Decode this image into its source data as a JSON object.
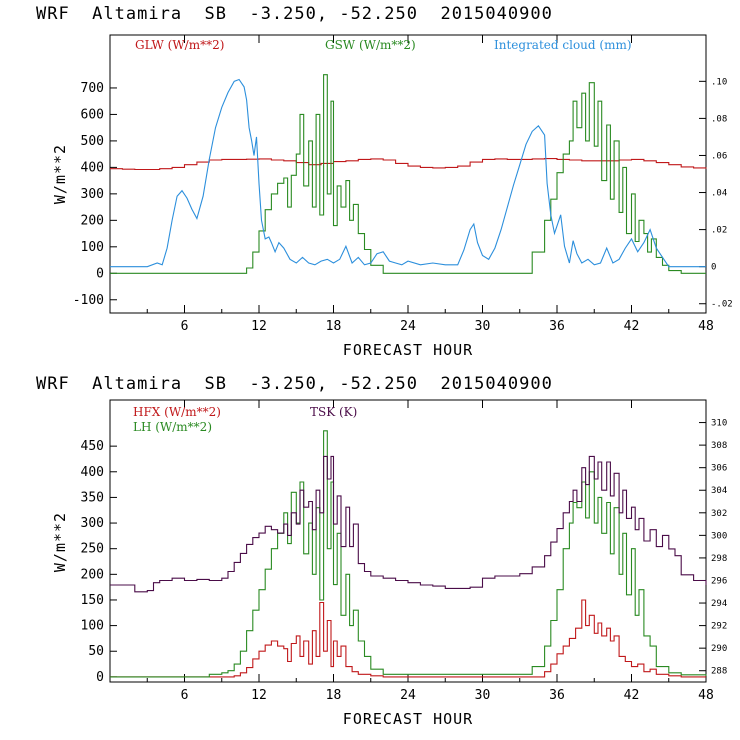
{
  "top": {
    "header": "WRF  Altamira  SB  -3.250, -52.250  2015040900",
    "ylabel": "W/m**2",
    "xlabel": "FORECAST HOUR",
    "legend": [
      {
        "label": "GLW (W/m**2)",
        "color": "#c0181a"
      },
      {
        "label": "GSW (W/m**2)",
        "color": "#2a8a22"
      },
      {
        "label": "Integrated cloud (mm)",
        "color": "#2c8fdc"
      }
    ]
  },
  "bottom": {
    "header": "WRF  Altamira  SB  -3.250, -52.250  2015040900",
    "ylabel": "W/m**2",
    "xlabel": "FORECAST HOUR",
    "legend": [
      {
        "label": "HFX (W/m**2)",
        "color": "#c0181a"
      },
      {
        "label": "LH  (W/m**2)",
        "color": "#2a8a22"
      },
      {
        "label": "TSK (K)",
        "color": "#4a0c48"
      }
    ]
  },
  "chart_data": [
    {
      "type": "line",
      "title": "WRF  Altamira  SB  -3.250, -52.250  2015040900",
      "xlabel": "FORECAST HOUR",
      "ylabel": "W/m**2",
      "xlim": [
        0,
        48
      ],
      "ylim": [
        -150,
        900
      ],
      "xticks": [
        6,
        12,
        18,
        24,
        30,
        36,
        42,
        48
      ],
      "yticks": [
        -100,
        0,
        100,
        200,
        300,
        400,
        500,
        600,
        700
      ],
      "y2lim": [
        -0.025,
        0.125
      ],
      "y2ticks": [
        -0.02,
        0,
        0.02,
        0.04,
        0.06,
        0.08,
        0.1
      ],
      "y2ticklabels": [
        "-.02",
        "0",
        ".02",
        ".04",
        ".06",
        ".08",
        ".10"
      ],
      "series": [
        {
          "name": "GLW (W/m**2)",
          "axis": "left",
          "color": "#c0181a",
          "step": true,
          "x": [
            0,
            1,
            2,
            3,
            4,
            5,
            6,
            7,
            8,
            9,
            10,
            11,
            12,
            13,
            14,
            15,
            16,
            17,
            18,
            19,
            20,
            21,
            22,
            23,
            24,
            25,
            26,
            27,
            28,
            29,
            30,
            31,
            32,
            33,
            34,
            35,
            36,
            37,
            38,
            39,
            40,
            41,
            42,
            43,
            44,
            45,
            46,
            47,
            48
          ],
          "y": [
            395,
            393,
            392,
            392,
            395,
            400,
            410,
            420,
            428,
            430,
            430,
            431,
            432,
            428,
            425,
            418,
            410,
            415,
            422,
            425,
            430,
            432,
            428,
            415,
            405,
            400,
            398,
            400,
            405,
            420,
            430,
            432,
            430,
            430,
            432,
            433,
            430,
            428,
            425,
            425,
            425,
            428,
            430,
            425,
            418,
            410,
            402,
            398,
            395
          ]
        },
        {
          "name": "GSW (W/m**2)",
          "axis": "left",
          "color": "#2a8a22",
          "step": true,
          "x": [
            0,
            9,
            10,
            11,
            11.5,
            12,
            12.5,
            13,
            13.5,
            14,
            14.3,
            14.6,
            15,
            15.3,
            15.6,
            16,
            16.3,
            16.6,
            16.9,
            17.2,
            17.5,
            17.8,
            18,
            18.3,
            18.6,
            19,
            19.3,
            19.6,
            20,
            20.5,
            21,
            22,
            33,
            34,
            35,
            35.5,
            36,
            36.5,
            37,
            37.3,
            37.6,
            38,
            38.3,
            38.6,
            39,
            39.3,
            39.6,
            40,
            40.3,
            40.6,
            41,
            41.3,
            41.6,
            42,
            42.3,
            42.6,
            43,
            43.3,
            43.6,
            44,
            44.5,
            45,
            46,
            48
          ],
          "y": [
            0,
            0,
            0,
            20,
            80,
            160,
            240,
            300,
            340,
            360,
            250,
            370,
            450,
            600,
            330,
            500,
            250,
            600,
            220,
            750,
            300,
            650,
            180,
            330,
            250,
            350,
            200,
            260,
            150,
            90,
            30,
            0,
            0,
            80,
            200,
            280,
            380,
            450,
            500,
            650,
            550,
            680,
            500,
            720,
            480,
            650,
            350,
            560,
            280,
            500,
            230,
            400,
            150,
            300,
            120,
            200,
            150,
            80,
            130,
            60,
            30,
            10,
            0,
            0
          ]
        },
        {
          "name": "Integrated cloud (mm)",
          "axis": "right",
          "color": "#2c8fdc",
          "step": false,
          "x": [
            0,
            3,
            3.8,
            4.2,
            4.6,
            5,
            5.4,
            5.8,
            6.2,
            6.6,
            7,
            7.5,
            8,
            8.5,
            9,
            9.5,
            10,
            10.4,
            10.8,
            11,
            11.2,
            11.4,
            11.6,
            11.8,
            12,
            12.2,
            12.5,
            12.8,
            13,
            13.3,
            13.6,
            14,
            14.5,
            15,
            15.5,
            16,
            16.5,
            17,
            17.5,
            18,
            18.5,
            19,
            19.5,
            20,
            20.5,
            21,
            21.5,
            22,
            22.5,
            23,
            23.5,
            24,
            25,
            26,
            27,
            28,
            28.5,
            29,
            29.3,
            29.6,
            30,
            30.5,
            31,
            31.5,
            32,
            32.5,
            33,
            33.5,
            34,
            34.5,
            35,
            35.2,
            35.5,
            35.8,
            36,
            36.3,
            36.6,
            37,
            37.3,
            37.6,
            38,
            38.5,
            39,
            39.5,
            40,
            40.5,
            41,
            41.5,
            42,
            42.5,
            43,
            43.5,
            44,
            45,
            46,
            48
          ],
          "y": [
            0,
            0,
            0.002,
            0.001,
            0.01,
            0.025,
            0.038,
            0.041,
            0.037,
            0.031,
            0.026,
            0.038,
            0.058,
            0.075,
            0.086,
            0.094,
            0.1,
            0.101,
            0.097,
            0.09,
            0.075,
            0.068,
            0.06,
            0.07,
            0.045,
            0.025,
            0.015,
            0.016,
            0.013,
            0.008,
            0.013,
            0.01,
            0.004,
            0.002,
            0.005,
            0.002,
            0.001,
            0.003,
            0.004,
            0.002,
            0.004,
            0.011,
            0.002,
            0.005,
            0.001,
            0.002,
            0.007,
            0.008,
            0.003,
            0.002,
            0.001,
            0.003,
            0.001,
            0.002,
            0.001,
            0.001,
            0.009,
            0.02,
            0.023,
            0.013,
            0.006,
            0.004,
            0.01,
            0.02,
            0.032,
            0.044,
            0.055,
            0.066,
            0.073,
            0.076,
            0.071,
            0.045,
            0.028,
            0.018,
            0.022,
            0.028,
            0.011,
            0.002,
            0.014,
            0.007,
            0.002,
            0.004,
            0.001,
            0.002,
            0.01,
            0.002,
            0.004,
            0.01,
            0.015,
            0.008,
            0.013,
            0.02,
            0.01,
            0,
            0,
            0
          ]
        }
      ]
    },
    {
      "type": "line",
      "title": "WRF  Altamira  SB  -3.250, -52.250  2015040900",
      "xlabel": "FORECAST HOUR",
      "ylabel": "W/m**2",
      "xlim": [
        0,
        48
      ],
      "ylim": [
        -10,
        540
      ],
      "xticks": [
        6,
        12,
        18,
        24,
        30,
        36,
        42,
        48
      ],
      "yticks": [
        0,
        50,
        100,
        150,
        200,
        250,
        300,
        350,
        400,
        450
      ],
      "y2lim": [
        287,
        312
      ],
      "y2ticks": [
        288,
        290,
        292,
        294,
        296,
        298,
        300,
        302,
        304,
        306,
        308,
        310
      ],
      "series": [
        {
          "name": "HFX (W/m**2)",
          "axis": "left",
          "color": "#c0181a",
          "step": true,
          "x": [
            0,
            9,
            10,
            10.5,
            11,
            11.5,
            12,
            12.5,
            13,
            13.5,
            14,
            14.3,
            14.6,
            15,
            15.3,
            15.6,
            16,
            16.3,
            16.6,
            16.9,
            17.2,
            17.5,
            17.8,
            18,
            18.3,
            18.6,
            19,
            19.5,
            20,
            21,
            22,
            34,
            35,
            35.5,
            36,
            36.5,
            37,
            37.5,
            38,
            38.3,
            38.6,
            39,
            39.3,
            39.6,
            40,
            40.3,
            40.6,
            41,
            41.5,
            42,
            42.5,
            43,
            43.5,
            44,
            45,
            46,
            48
          ],
          "y": [
            0,
            0,
            2,
            8,
            18,
            35,
            50,
            62,
            70,
            60,
            55,
            30,
            65,
            80,
            40,
            70,
            25,
            90,
            40,
            145,
            50,
            110,
            20,
            70,
            40,
            60,
            20,
            10,
            5,
            2,
            0,
            0,
            10,
            25,
            45,
            60,
            75,
            95,
            150,
            100,
            120,
            85,
            105,
            80,
            95,
            70,
            80,
            40,
            30,
            20,
            25,
            10,
            15,
            5,
            2,
            0,
            0
          ]
        },
        {
          "name": "LH  (W/m**2)",
          "axis": "left",
          "color": "#2a8a22",
          "step": true,
          "x": [
            0,
            8,
            9,
            9.5,
            10,
            10.5,
            11,
            11.5,
            12,
            12.5,
            13,
            13.5,
            14,
            14.3,
            14.6,
            15,
            15.3,
            15.6,
            16,
            16.3,
            16.6,
            16.9,
            17.2,
            17.5,
            17.8,
            18,
            18.3,
            18.6,
            19,
            19.3,
            19.6,
            20,
            20.5,
            21,
            22,
            33,
            34,
            35,
            35.5,
            36,
            36.5,
            37,
            37.3,
            37.6,
            38,
            38.3,
            38.6,
            39,
            39.3,
            39.6,
            40,
            40.3,
            40.6,
            41,
            41.3,
            41.6,
            42,
            42.3,
            42.6,
            43,
            43.5,
            44,
            45,
            46,
            48
          ],
          "y": [
            0,
            5,
            8,
            12,
            25,
            50,
            90,
            130,
            170,
            210,
            250,
            280,
            320,
            260,
            360,
            300,
            380,
            240,
            300,
            200,
            330,
            150,
            480,
            250,
            380,
            180,
            280,
            120,
            200,
            100,
            130,
            70,
            40,
            15,
            5,
            5,
            20,
            60,
            110,
            170,
            250,
            300,
            340,
            330,
            380,
            310,
            400,
            300,
            350,
            280,
            340,
            240,
            330,
            200,
            280,
            160,
            250,
            120,
            170,
            80,
            60,
            20,
            8,
            4,
            2
          ]
        },
        {
          "name": "TSK (K)",
          "axis": "right",
          "color": "#4a0c48",
          "step": true,
          "x": [
            0,
            2,
            3,
            3.5,
            4,
            5,
            6,
            7,
            8,
            9,
            9.5,
            10,
            10.5,
            11,
            11.5,
            12,
            12.5,
            13,
            13.5,
            14,
            14.3,
            14.6,
            15,
            15.3,
            15.6,
            16,
            16.3,
            16.6,
            16.9,
            17.2,
            17.5,
            17.8,
            18,
            18.3,
            18.6,
            19,
            19.3,
            19.6,
            20,
            20.5,
            21,
            22,
            23,
            24,
            25,
            26,
            27,
            28,
            29,
            30,
            31,
            32,
            33,
            34,
            35,
            35.5,
            36,
            36.5,
            37,
            37.3,
            37.6,
            38,
            38.3,
            38.6,
            39,
            39.3,
            39.6,
            40,
            40.3,
            40.6,
            41,
            41.3,
            41.6,
            42,
            42.3,
            42.6,
            43,
            43.5,
            44,
            44.5,
            45,
            45.5,
            46,
            47,
            48
          ],
          "y": [
            295.6,
            295.0,
            295.1,
            295.8,
            296.0,
            296.2,
            296.0,
            296.1,
            296.0,
            296.2,
            296.8,
            297.6,
            298.4,
            299.2,
            299.8,
            300.2,
            300.8,
            300.5,
            300.2,
            301.0,
            300.0,
            302.0,
            301.0,
            304.0,
            302.5,
            303.0,
            300.5,
            304.0,
            302.0,
            307.0,
            305.0,
            307.0,
            301.0,
            303.5,
            299.0,
            302.5,
            299.0,
            301.0,
            297.5,
            296.8,
            296.4,
            296.2,
            296.0,
            295.8,
            295.6,
            295.5,
            295.3,
            295.3,
            295.4,
            296.2,
            296.4,
            296.4,
            296.6,
            297.2,
            298.2,
            299.4,
            300.6,
            302.0,
            303.0,
            304.0,
            303.0,
            306.0,
            304.5,
            307.0,
            305.0,
            306.5,
            304.0,
            306.5,
            303.5,
            305.5,
            302.0,
            304.0,
            301.5,
            302.5,
            300.5,
            301.5,
            299.5,
            300.5,
            299.0,
            300.0,
            298.8,
            298.2,
            296.5,
            296.0,
            295.6
          ]
        }
      ]
    }
  ]
}
